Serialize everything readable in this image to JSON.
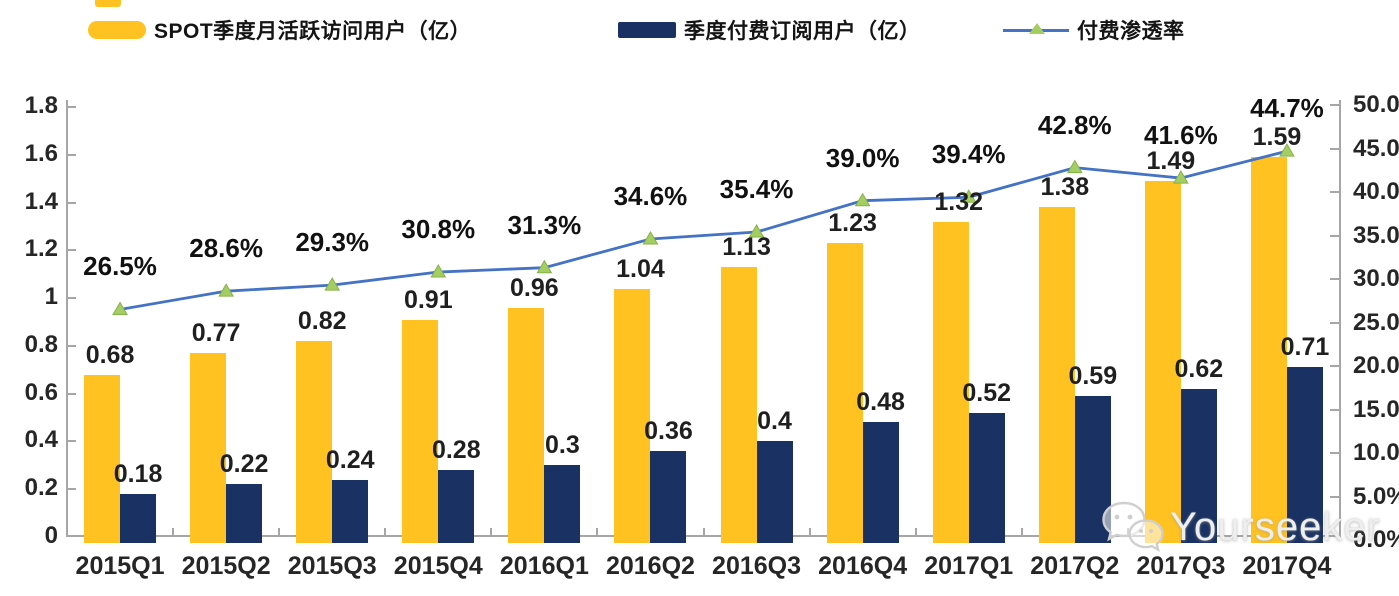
{
  "legend": {
    "items": [
      {
        "label": "SPOT季度月活跃访问用户（亿）",
        "type": "bar",
        "color": "#FFC220"
      },
      {
        "label": "季度付费订阅用户（亿）",
        "type": "bar",
        "color": "#1A3263"
      },
      {
        "label": "付费渗透率",
        "type": "line",
        "line_color": "#4472C4",
        "marker": "triangle-icon",
        "marker_color": "#A5CE62"
      }
    ]
  },
  "chart_data": {
    "type": "bar",
    "subtype": "clustered-bar-with-line",
    "categories": [
      "2015Q1",
      "2015Q2",
      "2015Q3",
      "2015Q4",
      "2016Q1",
      "2016Q2",
      "2016Q3",
      "2016Q4",
      "2017Q1",
      "2017Q2",
      "2017Q3",
      "2017Q4"
    ],
    "series": [
      {
        "name": "SPOT季度月活跃访问用户（亿）",
        "type": "bar",
        "axis": "left",
        "color": "#FFC220",
        "values": [
          0.68,
          0.77,
          0.82,
          0.91,
          0.96,
          1.04,
          1.13,
          1.23,
          1.32,
          1.38,
          1.49,
          1.59
        ],
        "labels": [
          "0.68",
          "0.77",
          "0.82",
          "0.91",
          "0.96",
          "1.04",
          "1.13",
          "1.23",
          "1.32",
          "1.38",
          "1.49",
          "1.59"
        ]
      },
      {
        "name": "季度付费订阅用户（亿）",
        "type": "bar",
        "axis": "left",
        "color": "#1A3263",
        "values": [
          0.18,
          0.22,
          0.24,
          0.28,
          0.3,
          0.36,
          0.4,
          0.48,
          0.52,
          0.59,
          0.62,
          0.71
        ],
        "labels": [
          "0.18",
          "0.22",
          "0.24",
          "0.28",
          "0.3",
          "0.36",
          "0.4",
          "0.48",
          "0.52",
          "0.59",
          "0.62",
          "0.71"
        ]
      },
      {
        "name": "付费渗透率",
        "type": "line",
        "axis": "right",
        "color": "#4472C4",
        "marker": "triangle-icon",
        "marker_color": "#A5CE62",
        "values": [
          26.5,
          28.6,
          29.3,
          30.8,
          31.3,
          34.6,
          35.4,
          39.0,
          39.4,
          42.8,
          41.6,
          44.7
        ],
        "labels": [
          "26.5%",
          "28.6%",
          "29.3%",
          "30.8%",
          "31.3%",
          "34.6%",
          "35.4%",
          "39.0%",
          "39.4%",
          "42.8%",
          "41.6%",
          "44.7%"
        ]
      }
    ],
    "left_axis": {
      "min": 0,
      "max": 1.8,
      "step": 0.2,
      "tick_labels": [
        "0",
        "0.2",
        "0.4",
        "0.6",
        "0.8",
        "1",
        "1.2",
        "1.4",
        "1.6",
        "1.8"
      ]
    },
    "right_axis": {
      "min": 0,
      "max": 50,
      "step": 5,
      "tick_labels": [
        "0.0%",
        "5.0%",
        "10.0%",
        "15.0%",
        "20.0%",
        "25.0%",
        "30.0%",
        "35.0%",
        "40.0%",
        "45.0%",
        "50.0%"
      ]
    },
    "grid": false,
    "legend_position": "top",
    "axis_color": "#A6A6A6"
  },
  "watermark": {
    "text": "Yourseeker",
    "icon": "wechat-icon"
  }
}
